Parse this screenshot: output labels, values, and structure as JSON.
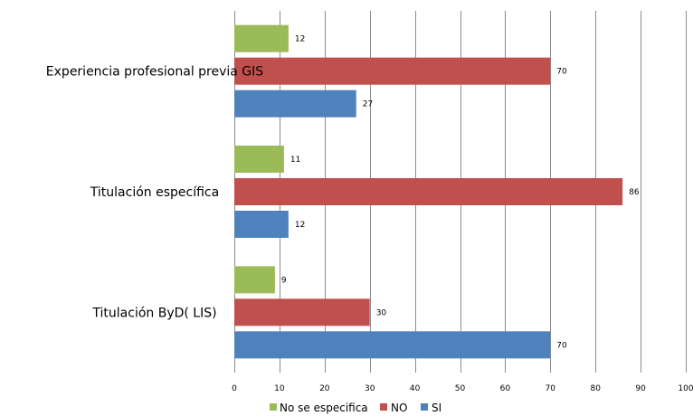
{
  "chart_data": {
    "type": "bar",
    "orientation": "horizontal",
    "categories": [
      "Titulación ByD( LIS)",
      "Titulación específica",
      "Experiencia profesional previa GIS"
    ],
    "series": [
      {
        "name": "SI",
        "values": [
          70,
          12,
          27
        ],
        "color": "#4f81bd"
      },
      {
        "name": "NO",
        "values": [
          30,
          86,
          70
        ],
        "color": "#c0504d"
      },
      {
        "name": "No se especifica",
        "values": [
          9,
          11,
          12
        ],
        "color": "#9bbb59"
      }
    ],
    "xlim": [
      0,
      100
    ],
    "x_ticks": [
      0,
      10,
      20,
      30,
      40,
      50,
      60,
      70,
      80,
      90,
      100
    ],
    "grid": true,
    "legend_position": "bottom",
    "legend_order": [
      "No se especifica",
      "NO",
      "SI"
    ],
    "title": "",
    "xlabel": "",
    "ylabel": ""
  }
}
